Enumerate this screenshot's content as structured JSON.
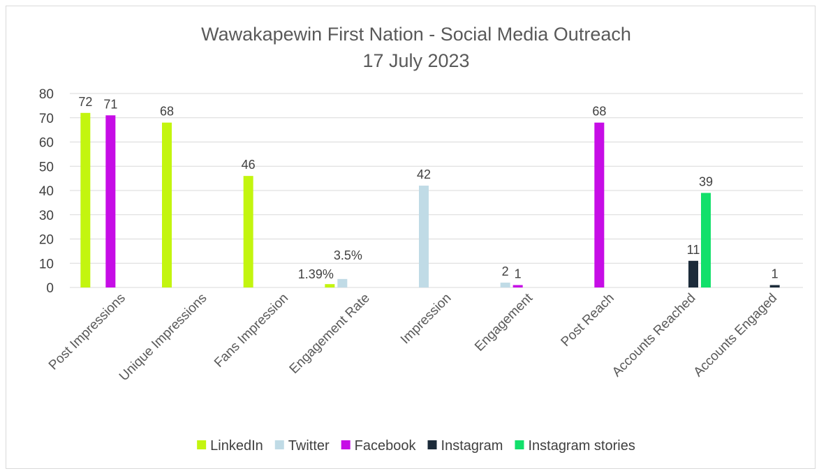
{
  "chart_data": {
    "type": "bar",
    "title": "Wawakapewin First Nation - Social Media Outreach",
    "subtitle": "17 July 2023",
    "ylim": [
      0,
      80
    ],
    "yticks": [
      0,
      10,
      20,
      30,
      40,
      50,
      60,
      70,
      80
    ],
    "grid": true,
    "legend_position": "bottom",
    "categories": [
      "Post Impressions",
      "Unique Impressions",
      "Fans Impression",
      "Engagement Rate",
      "Impression",
      "Engagement",
      "Post Reach",
      "Accounts Reached",
      "Accounts Engaged"
    ],
    "series": [
      {
        "name": "LinkedIn",
        "color": "#c3f50f",
        "values": [
          72,
          68,
          46,
          1.39,
          null,
          null,
          null,
          null,
          null
        ],
        "labels": [
          "72",
          "68",
          "46",
          "1.39%",
          null,
          null,
          null,
          null,
          null
        ]
      },
      {
        "name": "Twitter",
        "color": "#c0dbe6",
        "values": [
          null,
          null,
          null,
          3.5,
          42,
          2,
          null,
          null,
          null
        ],
        "labels": [
          null,
          null,
          null,
          "3.5%",
          "42",
          "2",
          null,
          null,
          null
        ]
      },
      {
        "name": "Facebook",
        "color": "#c60de6",
        "values": [
          71,
          null,
          null,
          null,
          null,
          1,
          68,
          null,
          null
        ],
        "labels": [
          "71",
          null,
          null,
          null,
          null,
          "1",
          "68",
          null,
          null
        ]
      },
      {
        "name": "Instagram",
        "color": "#1c2b3a",
        "values": [
          null,
          null,
          null,
          null,
          null,
          null,
          null,
          11,
          1
        ],
        "labels": [
          null,
          null,
          null,
          null,
          null,
          null,
          null,
          "11",
          "1"
        ]
      },
      {
        "name": "Instagram stories",
        "color": "#12e06b",
        "values": [
          null,
          null,
          null,
          null,
          null,
          null,
          null,
          39,
          null
        ],
        "labels": [
          null,
          null,
          null,
          null,
          null,
          null,
          null,
          "39",
          null
        ]
      }
    ]
  }
}
